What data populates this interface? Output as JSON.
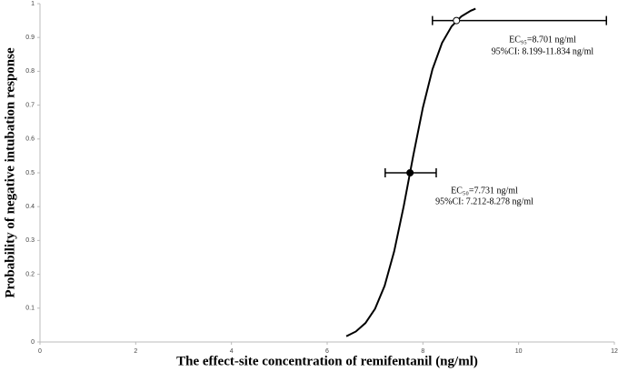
{
  "chart_data": {
    "type": "line",
    "xlabel": "The effect-site concentration of remifentanil (ng/ml)",
    "ylabel": "Probability of negative intubation response",
    "xlim": [
      0,
      12
    ],
    "xticks": [
      0,
      2,
      4,
      6,
      8,
      10,
      12
    ],
    "ylim": [
      0,
      1
    ],
    "yticks": [
      0,
      0.1,
      0.2,
      0.3,
      0.4,
      0.5,
      0.6,
      0.7,
      0.8,
      0.9,
      1
    ],
    "series": [
      {
        "color": "#000000",
        "x": [
          6.4,
          6.6,
          6.8,
          7.0,
          7.2,
          7.4,
          7.6,
          7.8,
          8.0,
          8.2,
          8.4,
          8.6,
          8.8,
          9.0,
          9.1
        ],
        "values": [
          0.017,
          0.031,
          0.056,
          0.098,
          0.166,
          0.268,
          0.402,
          0.552,
          0.693,
          0.806,
          0.884,
          0.933,
          0.962,
          0.979,
          0.985
        ]
      }
    ],
    "markers": [
      {
        "x": 7.731,
        "y": 0.5,
        "ci": [
          7.212,
          8.278
        ],
        "filled": true
      },
      {
        "x": 8.701,
        "y": 0.95,
        "ci": [
          8.199,
          11.834
        ],
        "filled": false
      }
    ],
    "annotations": [
      "EC₉₅=8.701 ng/ml",
      "95%CI: 8.199-11.834 ng/ml",
      "EC₅₀=7.731 ng/ml",
      "95%CI: 7.212-8.278 ng/ml"
    ]
  }
}
